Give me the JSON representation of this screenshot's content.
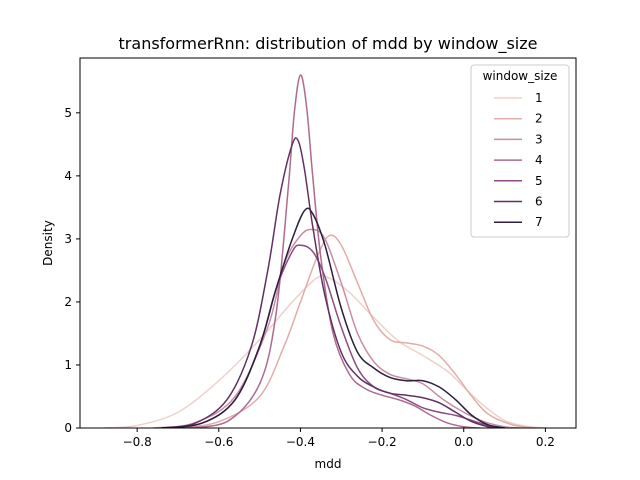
{
  "chart_data": {
    "type": "line",
    "title": "transformerRnn: distribution of mdd by window_size",
    "xlabel": "mdd",
    "ylabel": "Density",
    "xlim": [
      -0.94,
      0.275
    ],
    "ylim": [
      0,
      5.87
    ],
    "x_ticks": [
      "−0.8",
      "−0.6",
      "−0.4",
      "−0.2",
      "0.0",
      "0.2"
    ],
    "x_tick_values": [
      -0.8,
      -0.6,
      -0.4,
      -0.2,
      0.0,
      0.2
    ],
    "y_ticks": [
      "0",
      "1",
      "2",
      "3",
      "4",
      "5"
    ],
    "y_tick_values": [
      0,
      1,
      2,
      3,
      4,
      5
    ],
    "grid": false,
    "legend": {
      "title": "window_size",
      "placement": "top-right"
    },
    "series": [
      {
        "name": "1",
        "color": "#edd1cb",
        "points": [
          [
            -0.88,
            0
          ],
          [
            -0.8,
            0.04
          ],
          [
            -0.7,
            0.25
          ],
          [
            -0.6,
            0.75
          ],
          [
            -0.5,
            1.4
          ],
          [
            -0.42,
            2.0
          ],
          [
            -0.36,
            2.38
          ],
          [
            -0.33,
            2.38
          ],
          [
            -0.28,
            2.15
          ],
          [
            -0.22,
            1.75
          ],
          [
            -0.16,
            1.38
          ],
          [
            -0.1,
            1.15
          ],
          [
            -0.04,
            0.9
          ],
          [
            0.0,
            0.65
          ],
          [
            0.05,
            0.35
          ],
          [
            0.1,
            0.12
          ],
          [
            0.15,
            0.03
          ],
          [
            0.2,
            0
          ]
        ]
      },
      {
        "name": "2",
        "color": "#e0adaa",
        "points": [
          [
            -0.7,
            0
          ],
          [
            -0.6,
            0.1
          ],
          [
            -0.5,
            0.5
          ],
          [
            -0.44,
            1.3
          ],
          [
            -0.4,
            2.0
          ],
          [
            -0.36,
            2.7
          ],
          [
            -0.33,
            3.05
          ],
          [
            -0.3,
            2.9
          ],
          [
            -0.26,
            2.3
          ],
          [
            -0.22,
            1.7
          ],
          [
            -0.18,
            1.4
          ],
          [
            -0.14,
            1.35
          ],
          [
            -0.1,
            1.3
          ],
          [
            -0.06,
            1.15
          ],
          [
            -0.02,
            0.85
          ],
          [
            0.02,
            0.5
          ],
          [
            0.06,
            0.22
          ],
          [
            0.12,
            0.05
          ],
          [
            0.18,
            0
          ]
        ]
      },
      {
        "name": "3",
        "color": "#c98da1",
        "points": [
          [
            -0.76,
            0
          ],
          [
            -0.66,
            0.08
          ],
          [
            -0.56,
            0.5
          ],
          [
            -0.48,
            1.6
          ],
          [
            -0.44,
            2.6
          ],
          [
            -0.4,
            3.05
          ],
          [
            -0.37,
            3.15
          ],
          [
            -0.34,
            3.0
          ],
          [
            -0.3,
            2.3
          ],
          [
            -0.26,
            1.5
          ],
          [
            -0.22,
            1.05
          ],
          [
            -0.18,
            0.85
          ],
          [
            -0.14,
            0.78
          ],
          [
            -0.1,
            0.7
          ],
          [
            -0.05,
            0.45
          ],
          [
            0.0,
            0.25
          ],
          [
            0.05,
            0.1
          ],
          [
            0.1,
            0.02
          ],
          [
            0.14,
            0
          ]
        ]
      },
      {
        "name": "4",
        "color": "#ae6b8f",
        "points": [
          [
            -0.68,
            0
          ],
          [
            -0.58,
            0.1
          ],
          [
            -0.5,
            0.7
          ],
          [
            -0.46,
            1.8
          ],
          [
            -0.43,
            3.8
          ],
          [
            -0.415,
            5.0
          ],
          [
            -0.4,
            5.6
          ],
          [
            -0.385,
            5.1
          ],
          [
            -0.37,
            4.0
          ],
          [
            -0.35,
            2.7
          ],
          [
            -0.32,
            1.5
          ],
          [
            -0.28,
            0.85
          ],
          [
            -0.24,
            0.62
          ],
          [
            -0.2,
            0.52
          ],
          [
            -0.16,
            0.45
          ],
          [
            -0.12,
            0.35
          ],
          [
            -0.08,
            0.2
          ],
          [
            -0.04,
            0.08
          ],
          [
            0.0,
            0.02
          ],
          [
            0.04,
            0
          ]
        ]
      },
      {
        "name": "5",
        "color": "#8c4b82",
        "points": [
          [
            -0.74,
            0
          ],
          [
            -0.64,
            0.08
          ],
          [
            -0.56,
            0.45
          ],
          [
            -0.5,
            1.3
          ],
          [
            -0.46,
            2.2
          ],
          [
            -0.42,
            2.8
          ],
          [
            -0.4,
            2.9
          ],
          [
            -0.37,
            2.8
          ],
          [
            -0.34,
            2.4
          ],
          [
            -0.3,
            1.6
          ],
          [
            -0.26,
            0.95
          ],
          [
            -0.22,
            0.65
          ],
          [
            -0.18,
            0.55
          ],
          [
            -0.14,
            0.45
          ],
          [
            -0.1,
            0.32
          ],
          [
            -0.06,
            0.25
          ],
          [
            -0.02,
            0.2
          ],
          [
            0.02,
            0.12
          ],
          [
            0.06,
            0.04
          ],
          [
            0.1,
            0
          ]
        ]
      },
      {
        "name": "6",
        "color": "#603163",
        "points": [
          [
            -0.74,
            0
          ],
          [
            -0.66,
            0.07
          ],
          [
            -0.58,
            0.45
          ],
          [
            -0.52,
            1.3
          ],
          [
            -0.48,
            2.5
          ],
          [
            -0.45,
            3.7
          ],
          [
            -0.42,
            4.5
          ],
          [
            -0.405,
            4.55
          ],
          [
            -0.39,
            4.1
          ],
          [
            -0.37,
            3.2
          ],
          [
            -0.34,
            2.1
          ],
          [
            -0.3,
            1.2
          ],
          [
            -0.26,
            0.82
          ],
          [
            -0.22,
            0.65
          ],
          [
            -0.18,
            0.55
          ],
          [
            -0.14,
            0.52
          ],
          [
            -0.1,
            0.48
          ],
          [
            -0.06,
            0.4
          ],
          [
            -0.02,
            0.25
          ],
          [
            0.02,
            0.1
          ],
          [
            0.06,
            0.02
          ],
          [
            0.08,
            0
          ]
        ]
      },
      {
        "name": "7",
        "color": "#2d1e3e",
        "points": [
          [
            -0.74,
            0
          ],
          [
            -0.64,
            0.08
          ],
          [
            -0.56,
            0.45
          ],
          [
            -0.5,
            1.3
          ],
          [
            -0.46,
            2.2
          ],
          [
            -0.42,
            3.0
          ],
          [
            -0.39,
            3.45
          ],
          [
            -0.37,
            3.4
          ],
          [
            -0.34,
            2.9
          ],
          [
            -0.3,
            1.9
          ],
          [
            -0.26,
            1.2
          ],
          [
            -0.22,
            0.95
          ],
          [
            -0.18,
            0.8
          ],
          [
            -0.14,
            0.75
          ],
          [
            -0.1,
            0.75
          ],
          [
            -0.06,
            0.65
          ],
          [
            -0.02,
            0.45
          ],
          [
            0.02,
            0.2
          ],
          [
            0.06,
            0.05
          ],
          [
            0.1,
            0
          ]
        ]
      }
    ]
  }
}
